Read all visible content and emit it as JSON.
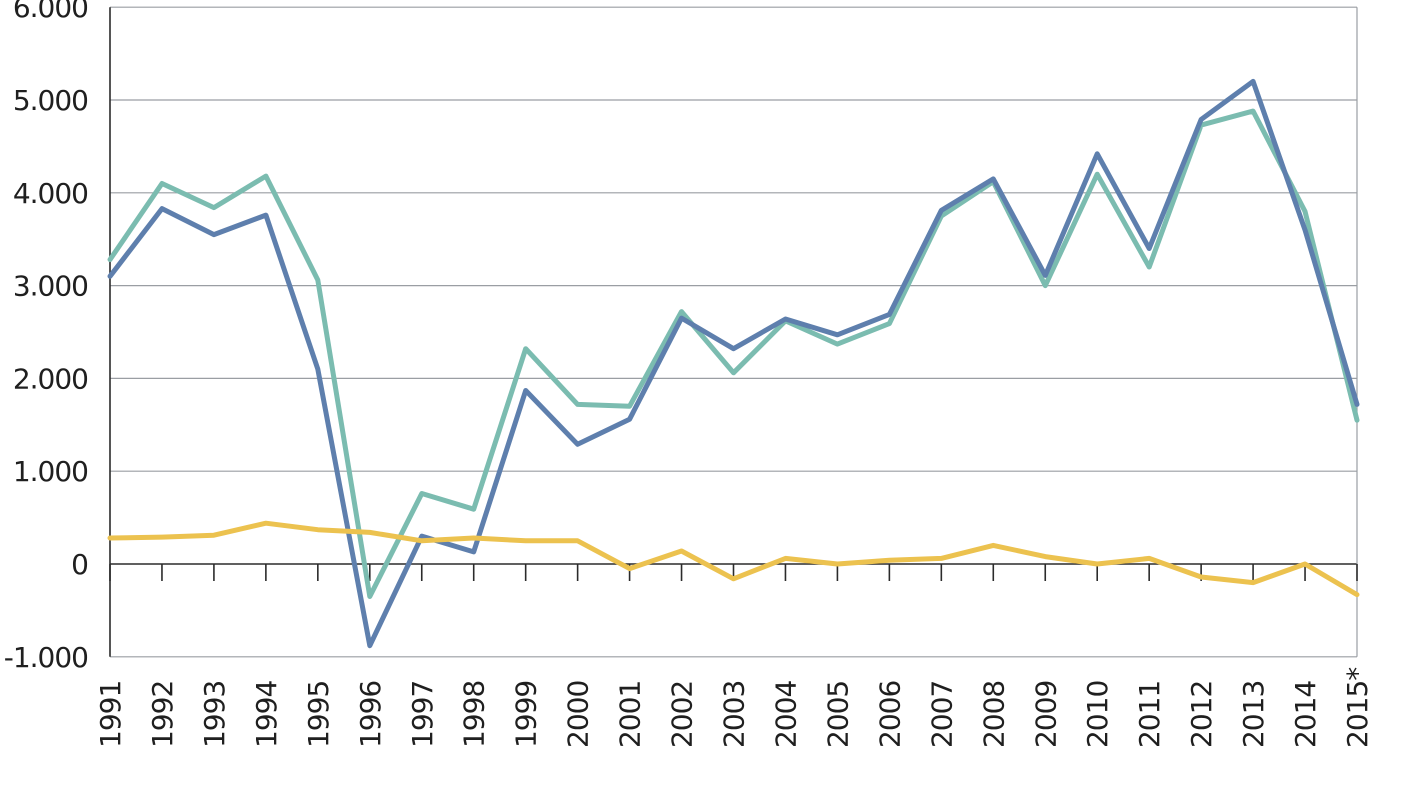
{
  "chart_data": {
    "type": "line",
    "title": "",
    "xlabel": "",
    "ylabel": "",
    "categories": [
      "1991",
      "1992",
      "1993",
      "1994",
      "1995",
      "1996",
      "1997",
      "1998",
      "1999",
      "2000",
      "2001",
      "2002",
      "2003",
      "2004",
      "2005",
      "2006",
      "2007",
      "2008",
      "2009",
      "2010",
      "2011",
      "2012",
      "2013",
      "2014",
      "2015*"
    ],
    "y_ticks": [
      -1000,
      0,
      1000,
      2000,
      3000,
      4000,
      5000,
      6000
    ],
    "y_tick_labels": [
      "-1.000",
      "0",
      "1.000",
      "2.000",
      "3.000",
      "4.000",
      "5.000",
      "6.000"
    ],
    "ylim": [
      -1000,
      6000
    ],
    "grid": true,
    "series": [
      {
        "color": "#7bbcb0",
        "values": [
          3280,
          4100,
          3840,
          4180,
          3060,
          -350,
          760,
          590,
          2320,
          1720,
          1700,
          2720,
          2060,
          2620,
          2370,
          2590,
          3750,
          4120,
          3000,
          4200,
          3200,
          4730,
          4880,
          3800,
          1550
        ]
      },
      {
        "color": "#5e7fad",
        "values": [
          3100,
          3830,
          3550,
          3760,
          2100,
          -880,
          300,
          130,
          1870,
          1290,
          1560,
          2650,
          2320,
          2640,
          2470,
          2690,
          3810,
          4150,
          3110,
          4420,
          3400,
          4790,
          5200,
          3600,
          1720
        ]
      },
      {
        "color": "#ecc24f",
        "values": [
          280,
          290,
          310,
          440,
          370,
          340,
          250,
          280,
          250,
          250,
          -50,
          140,
          -160,
          60,
          0,
          40,
          60,
          200,
          80,
          0,
          60,
          -140,
          -200,
          0,
          -330
        ]
      }
    ]
  }
}
